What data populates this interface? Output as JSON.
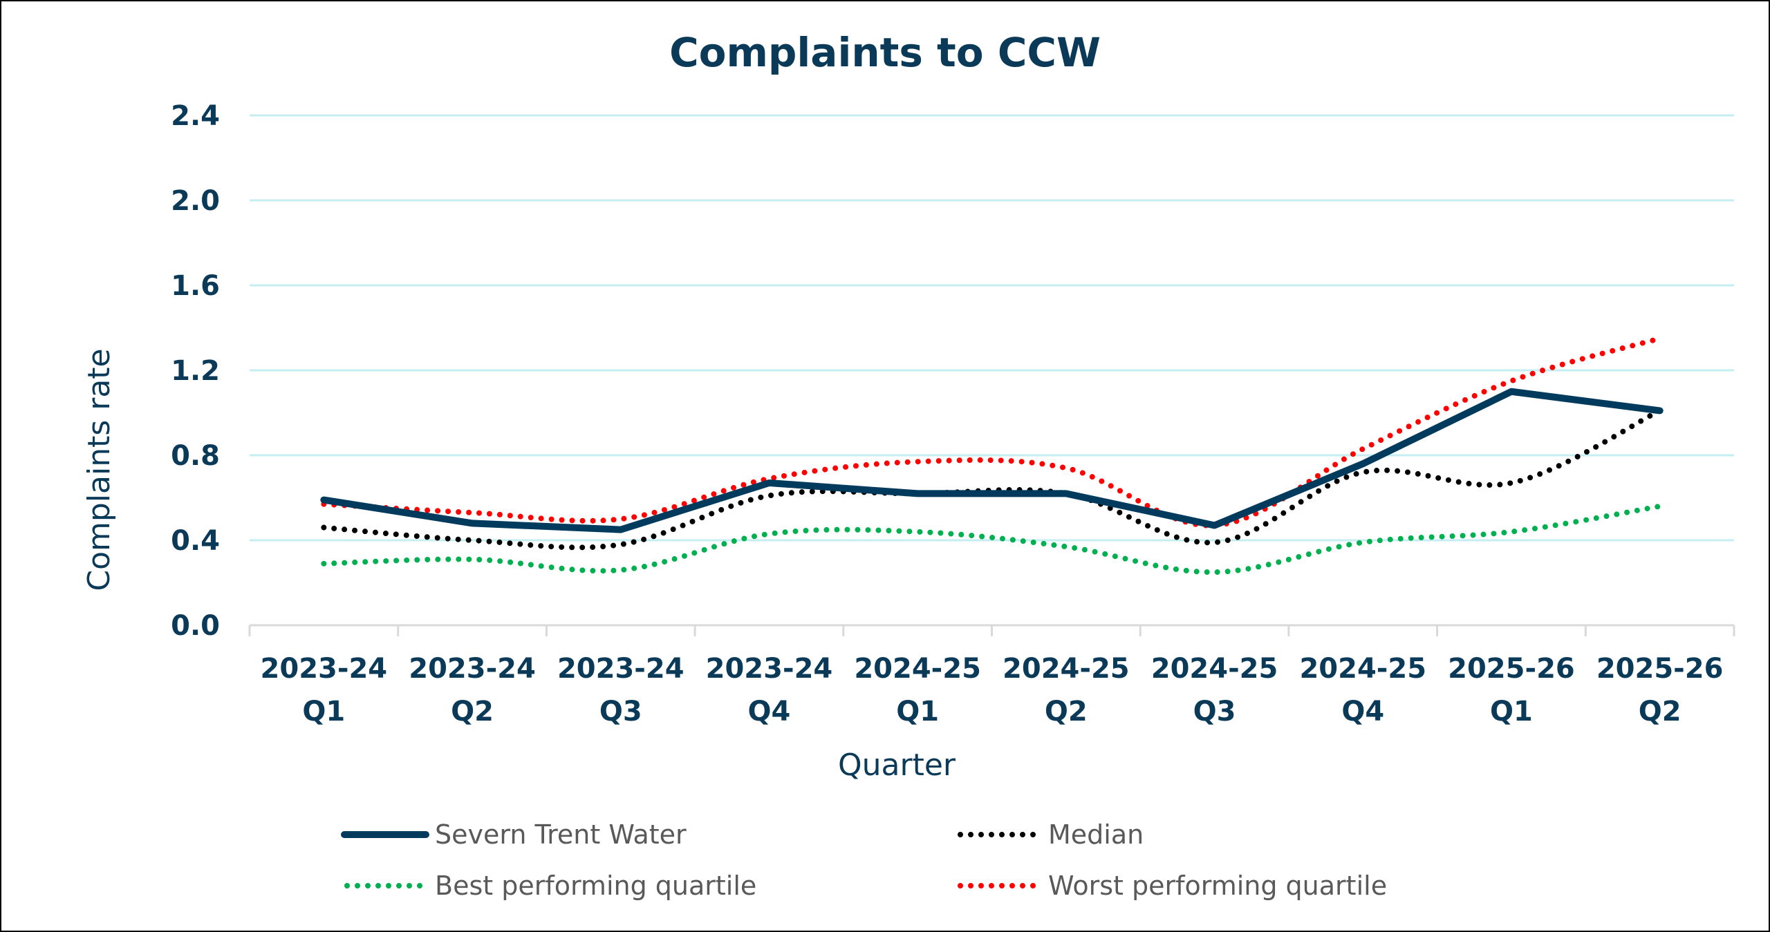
{
  "chart_data": {
    "type": "line",
    "title": "Complaints to CCW",
    "xlabel": "Quarter",
    "ylabel": "Complaints rate",
    "ylim": [
      0,
      2.4
    ],
    "yticks": [
      "0.0",
      "0.4",
      "0.8",
      "1.2",
      "1.6",
      "2.0",
      "2.4"
    ],
    "grid": true,
    "legend_position": "bottom",
    "categories": [
      [
        "2023-24",
        "Q1"
      ],
      [
        "2023-24",
        "Q2"
      ],
      [
        "2023-24",
        "Q3"
      ],
      [
        "2023-24",
        "Q4"
      ],
      [
        "2024-25",
        "Q1"
      ],
      [
        "2024-25",
        "Q2"
      ],
      [
        "2024-25",
        "Q3"
      ],
      [
        "2024-25",
        "Q4"
      ],
      [
        "2025-26",
        "Q1"
      ],
      [
        "2025-26",
        "Q2"
      ]
    ],
    "series": [
      {
        "name": "Severn Trent Water",
        "color": "#003a5d",
        "style": "solid",
        "values": [
          0.59,
          0.48,
          0.45,
          0.67,
          0.62,
          0.62,
          0.47,
          0.76,
          1.1,
          1.01
        ]
      },
      {
        "name": "Median",
        "color": "#000000",
        "style": "dotted",
        "values": [
          0.46,
          0.4,
          0.38,
          0.61,
          0.62,
          0.62,
          0.39,
          0.72,
          0.67,
          1.01
        ]
      },
      {
        "name": "Best performing quartile",
        "color": "#00b050",
        "style": "dotted",
        "values": [
          0.29,
          0.31,
          0.26,
          0.43,
          0.44,
          0.37,
          0.25,
          0.39,
          0.44,
          0.56
        ]
      },
      {
        "name": "Worst performing quartile",
        "color": "#ff0000",
        "style": "dotted",
        "values": [
          0.57,
          0.53,
          0.5,
          0.69,
          0.77,
          0.74,
          0.47,
          0.83,
          1.15,
          1.35
        ]
      }
    ],
    "gridline_color": "#c5eef2",
    "axis_color": "#d9d9d9"
  }
}
